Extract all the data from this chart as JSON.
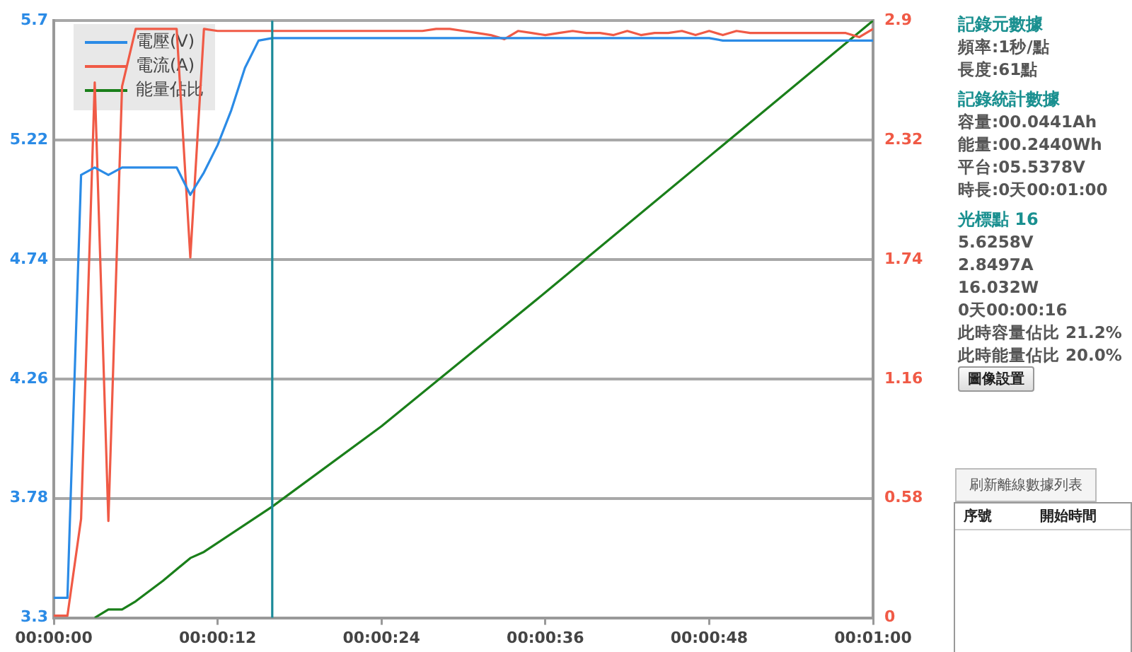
{
  "chart_data": {
    "type": "line",
    "x": [
      0,
      1,
      2,
      3,
      4,
      5,
      6,
      7,
      8,
      9,
      10,
      11,
      12,
      13,
      14,
      15,
      16,
      17,
      18,
      19,
      20,
      21,
      22,
      23,
      24,
      25,
      26,
      27,
      28,
      29,
      30,
      31,
      32,
      33,
      34,
      35,
      36,
      37,
      38,
      39,
      40,
      41,
      42,
      43,
      44,
      45,
      46,
      47,
      48,
      49,
      50,
      51,
      52,
      53,
      54,
      55,
      56,
      57,
      58,
      59,
      60
    ],
    "series": [
      {
        "name": "電壓(V)",
        "color": "#2b8be6",
        "values": [
          3.38,
          3.38,
          5.08,
          5.11,
          5.08,
          5.11,
          5.11,
          5.11,
          5.11,
          5.11,
          5.0,
          5.09,
          5.2,
          5.34,
          5.51,
          5.62,
          5.63,
          5.63,
          5.63,
          5.63,
          5.63,
          5.63,
          5.63,
          5.63,
          5.63,
          5.63,
          5.63,
          5.63,
          5.63,
          5.63,
          5.63,
          5.63,
          5.63,
          5.63,
          5.63,
          5.63,
          5.63,
          5.63,
          5.63,
          5.63,
          5.63,
          5.63,
          5.63,
          5.63,
          5.63,
          5.63,
          5.63,
          5.63,
          5.63,
          5.62,
          5.62,
          5.62,
          5.62,
          5.62,
          5.62,
          5.62,
          5.62,
          5.62,
          5.62,
          5.62,
          5.62
        ]
      },
      {
        "name": "電流(A)",
        "color": "#f05a46",
        "axis": "y2",
        "values": [
          0.01,
          0.01,
          0.48,
          2.6,
          0.47,
          2.58,
          2.86,
          2.86,
          2.86,
          2.86,
          1.75,
          2.86,
          2.85,
          2.85,
          2.85,
          2.85,
          2.85,
          2.85,
          2.85,
          2.85,
          2.85,
          2.85,
          2.85,
          2.85,
          2.85,
          2.85,
          2.85,
          2.85,
          2.86,
          2.86,
          2.85,
          2.84,
          2.83,
          2.81,
          2.85,
          2.84,
          2.83,
          2.84,
          2.85,
          2.84,
          2.84,
          2.83,
          2.85,
          2.83,
          2.84,
          2.84,
          2.85,
          2.83,
          2.85,
          2.83,
          2.85,
          2.84,
          2.84,
          2.84,
          2.84,
          2.84,
          2.84,
          2.84,
          2.84,
          2.82,
          2.86
        ]
      },
      {
        "name": "能量佔比",
        "color": "#1a7f1a",
        "axis": "y2",
        "x": [
          3,
          4,
          5,
          6,
          8,
          10,
          11,
          16,
          24,
          36,
          48,
          60
        ],
        "values": [
          0,
          0.04,
          0.04,
          0.08,
          0.18,
          0.29,
          0.32,
          0.54,
          0.93,
          1.58,
          2.24,
          2.9
        ]
      }
    ],
    "xlim": [
      0,
      60
    ],
    "xticks": [
      {
        "value": 0,
        "label": "00:00:00"
      },
      {
        "value": 12,
        "label": "00:00:12"
      },
      {
        "value": 24,
        "label": "00:00:24"
      },
      {
        "value": 36,
        "label": "00:00:36"
      },
      {
        "value": 48,
        "label": "00:00:48"
      },
      {
        "value": 60,
        "label": "00:01:00"
      }
    ],
    "ylim": [
      3.3,
      5.7
    ],
    "yticks": [
      3.3,
      3.78,
      4.26,
      4.74,
      5.22,
      5.7
    ],
    "y2lim": [
      0,
      2.9
    ],
    "y2ticks": [
      0,
      0.58,
      1.16,
      1.74,
      2.32,
      2.9
    ],
    "ref_lines": [
      {
        "axis": "x",
        "value": 16,
        "color": "#1b8a99"
      }
    ],
    "grid": "y",
    "legend": "top left",
    "marker": "none",
    "line_style": "solid",
    "annotations": [
      "記錄元數據",
      "頻率:1秒/點",
      "長度:61點",
      "記錄統計數據",
      "容量:00.0441Ah",
      "能量:00.2440Wh",
      "平台:05.5378V",
      "時長:0天00:01:00",
      "光標點 16",
      "5.6258V",
      "2.8497A",
      "16.032W",
      "0天00:00:16",
      "此時容量佔比 21.2%",
      "此時能量佔比 20.0%",
      "圖像設置",
      "刷新離線數據列表",
      "序號",
      "開始時間"
    ]
  }
}
